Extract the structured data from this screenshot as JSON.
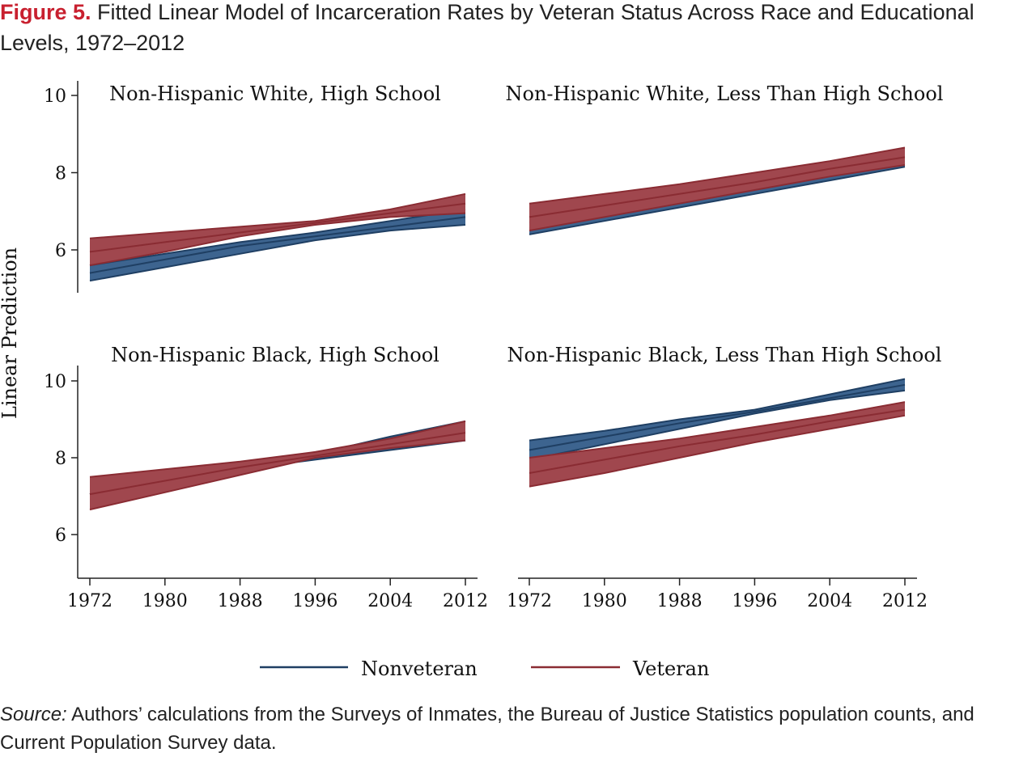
{
  "figure": {
    "label": "Figure 5.",
    "title": "Fitted Linear Model of Incarceration Rates by Veteran Status Across Race and Educational Levels, 1972–2012"
  },
  "source": {
    "label": "Source:",
    "text": "Authors’ calculations from the Surveys of Inmates, the Bureau of Justice Statistics population counts, and Current Population Survey data."
  },
  "colors": {
    "nonveteran_line": "#1f3f63",
    "nonveteran_fill": "#3d648f",
    "veteran_line": "#8a2c33",
    "veteran_fill": "#a0474e"
  },
  "chart_data": {
    "type": "area",
    "ylabel": "Linear Prediction",
    "legend": {
      "placement": "bottom",
      "items": [
        "Nonveteran",
        "Veteran"
      ]
    },
    "x_ticks": [
      1972,
      1980,
      1988,
      1996,
      2004,
      2012
    ],
    "xlim": [
      1972,
      2012
    ],
    "y_ticks": [
      6,
      8,
      10
    ],
    "grid": false,
    "panels": [
      {
        "title": "Non-Hispanic White, High School",
        "ylim": [
          5.0,
          10.4
        ],
        "series": [
          {
            "name": "Nonveteran",
            "x": [
              1972,
              1980,
              1988,
              1996,
              2004,
              2012
            ],
            "fit": [
              5.4,
              5.75,
              6.1,
              6.35,
              6.6,
              6.85
            ],
            "lower": [
              5.2,
              5.55,
              5.9,
              6.25,
              6.5,
              6.65
            ],
            "upper": [
              5.6,
              5.9,
              6.2,
              6.45,
              6.75,
              7.05
            ]
          },
          {
            "name": "Veteran",
            "x": [
              1972,
              1980,
              1988,
              1996,
              2004,
              2012
            ],
            "fit": [
              5.95,
              6.2,
              6.45,
              6.7,
              6.95,
              7.2
            ],
            "lower": [
              5.6,
              5.95,
              6.35,
              6.65,
              6.85,
              6.95
            ],
            "upper": [
              6.3,
              6.45,
              6.6,
              6.75,
              7.05,
              7.45
            ]
          }
        ]
      },
      {
        "title": "Non-Hispanic White, Less Than High School",
        "ylim": [
          5.0,
          10.4
        ],
        "series": [
          {
            "name": "Nonveteran",
            "x": [
              1972,
              1980,
              1988,
              1996,
              2004,
              2012
            ],
            "fit": [
              6.55,
              6.9,
              7.25,
              7.6,
              7.95,
              8.25
            ],
            "lower": [
              6.4,
              6.75,
              7.1,
              7.45,
              7.8,
              8.15
            ],
            "upper": [
              6.7,
              7.05,
              7.4,
              7.7,
              8.05,
              8.3
            ]
          },
          {
            "name": "Veteran",
            "x": [
              1972,
              1980,
              1988,
              1996,
              2004,
              2012
            ],
            "fit": [
              6.85,
              7.15,
              7.45,
              7.75,
              8.1,
              8.4
            ],
            "lower": [
              6.5,
              6.85,
              7.2,
              7.55,
              7.9,
              8.2
            ],
            "upper": [
              7.2,
              7.45,
              7.7,
              8.0,
              8.3,
              8.65
            ]
          }
        ]
      },
      {
        "title": "Non-Hispanic Black, High School",
        "ylim": [
          5.0,
          10.4
        ],
        "series": [
          {
            "name": "Nonveteran",
            "x": [
              1972,
              1980,
              1988,
              1996,
              2004,
              2012
            ],
            "fit": [
              7.05,
              7.4,
              7.75,
              8.05,
              8.45,
              8.7
            ],
            "lower": [
              7.05,
              7.4,
              7.7,
              7.95,
              8.2,
              8.45
            ],
            "upper": [
              7.05,
              7.4,
              7.75,
              8.1,
              8.55,
              8.95
            ]
          },
          {
            "name": "Veteran",
            "x": [
              1972,
              1980,
              1988,
              1996,
              2004,
              2012
            ],
            "fit": [
              7.05,
              7.4,
              7.75,
              8.05,
              8.35,
              8.65
            ],
            "lower": [
              6.65,
              7.1,
              7.55,
              8.0,
              8.25,
              8.45
            ],
            "upper": [
              7.5,
              7.7,
              7.9,
              8.15,
              8.5,
              8.95
            ]
          }
        ]
      },
      {
        "title": "Non-Hispanic Black, Less Than High School",
        "ylim": [
          5.0,
          10.4
        ],
        "series": [
          {
            "name": "Nonveteran",
            "x": [
              1972,
              1980,
              1988,
              1996,
              2004,
              2012
            ],
            "fit": [
              8.2,
              8.55,
              8.9,
              9.2,
              9.55,
              9.9
            ],
            "lower": [
              7.95,
              8.35,
              8.75,
              9.15,
              9.5,
              9.75
            ],
            "upper": [
              8.45,
              8.7,
              9.0,
              9.25,
              9.65,
              10.05
            ]
          },
          {
            "name": "Veteran",
            "x": [
              1972,
              1980,
              1988,
              1996,
              2004,
              2012
            ],
            "fit": [
              7.6,
              7.95,
              8.3,
              8.6,
              8.95,
              9.25
            ],
            "lower": [
              7.25,
              7.6,
              8.0,
              8.4,
              8.75,
              9.1
            ],
            "upper": [
              8.0,
              8.25,
              8.5,
              8.8,
              9.1,
              9.45
            ]
          }
        ]
      }
    ]
  }
}
